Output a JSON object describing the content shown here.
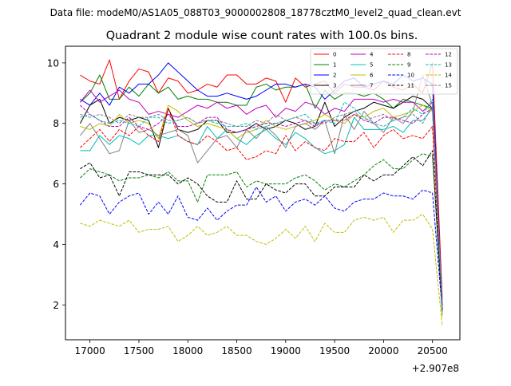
{
  "figure": {
    "suptitle": "Data file: modeM0/AS1A05_088T03_9000002808_18778cztM0_level2_quad_clean.evt",
    "title": "Quadrant 2 module wise count rates with 100.0s bins.",
    "offset_label": "+2.907e8"
  },
  "chart_data": {
    "type": "line",
    "title": "Quadrant 2 module wise count rates with 100.0s bins.",
    "xlabel": "",
    "ylabel": "",
    "x_offset": 290700000,
    "xlim": [
      16750,
      20780
    ],
    "ylim": [
      0.85,
      10.55
    ],
    "xticks": [
      17000,
      17500,
      18000,
      18500,
      19000,
      19500,
      20000,
      20500
    ],
    "yticks": [
      2,
      4,
      6,
      8,
      10
    ],
    "xtick_labels": [
      "17000",
      "17500",
      "18000",
      "18500",
      "19000",
      "19500",
      "20000",
      "20500"
    ],
    "ytick_labels": [
      "2",
      "4",
      "6",
      "8",
      "10"
    ],
    "grid": false,
    "legend_position": "top-right",
    "x": [
      16900,
      17000,
      17100,
      17200,
      17300,
      17400,
      17500,
      17600,
      17700,
      17800,
      17900,
      18000,
      18100,
      18200,
      18300,
      18400,
      18500,
      18600,
      18700,
      18800,
      18900,
      19000,
      19100,
      19200,
      19300,
      19400,
      19500,
      19600,
      19700,
      19800,
      19900,
      20000,
      20100,
      20200,
      20300,
      20400,
      20500,
      20600
    ],
    "series": [
      {
        "name": "0",
        "color": "#ff0000",
        "dash": "solid",
        "values": [
          9.6,
          9.4,
          9.3,
          10.1,
          8.8,
          9.4,
          9.8,
          9.7,
          9.0,
          9.5,
          9.4,
          9.0,
          9.1,
          9.3,
          9.2,
          9.6,
          9.6,
          9.3,
          9.3,
          9.5,
          9.4,
          8.7,
          9.5,
          9.2,
          9.3,
          9.4,
          9.0,
          9.3,
          9.2,
          9.2,
          9.1,
          9.4,
          9.2,
          9.1,
          9.3,
          9.0,
          10.0,
          2.2
        ]
      },
      {
        "name": "1",
        "color": "#008000",
        "dash": "solid",
        "values": [
          8.7,
          9.0,
          9.6,
          8.8,
          8.8,
          9.2,
          8.9,
          9.3,
          9.0,
          9.2,
          8.8,
          8.9,
          8.8,
          8.8,
          8.7,
          8.7,
          8.6,
          8.6,
          9.2,
          9.3,
          9.1,
          9.2,
          9.2,
          9.3,
          8.5,
          9.1,
          8.8,
          9.0,
          9.0,
          8.9,
          9.0,
          8.8,
          8.5,
          8.8,
          8.7,
          8.6,
          8.5,
          2.0
        ]
      },
      {
        "name": "2",
        "color": "#0000ff",
        "dash": "solid",
        "values": [
          8.8,
          8.6,
          9.0,
          8.6,
          9.2,
          9.0,
          9.3,
          9.3,
          9.6,
          10.0,
          9.7,
          9.4,
          9.1,
          8.9,
          8.9,
          9.0,
          8.9,
          8.8,
          8.9,
          9.1,
          9.3,
          9.3,
          9.2,
          9.3,
          9.2,
          8.8,
          9.1,
          9.4,
          9.5,
          9.2,
          9.3,
          9.4,
          9.3,
          9.6,
          9.4,
          9.5,
          9.3,
          1.9
        ]
      },
      {
        "name": "3",
        "color": "#000000",
        "dash": "solid",
        "values": [
          8.0,
          8.6,
          8.8,
          8.0,
          8.2,
          8.1,
          8.2,
          8.1,
          7.2,
          8.5,
          7.8,
          7.7,
          7.8,
          8.1,
          8.1,
          7.7,
          7.7,
          7.8,
          8.0,
          7.8,
          7.9,
          8.1,
          8.0,
          7.8,
          7.9,
          8.7,
          7.9,
          8.2,
          8.4,
          8.5,
          8.7,
          8.6,
          8.5,
          8.7,
          8.9,
          8.8,
          8.5,
          1.7
        ]
      },
      {
        "name": "4",
        "color": "#bf00bf",
        "dash": "solid",
        "values": [
          8.7,
          9.1,
          8.7,
          8.9,
          9.1,
          8.8,
          8.7,
          8.3,
          8.4,
          8.3,
          8.2,
          8.4,
          8.6,
          8.5,
          8.7,
          8.5,
          8.6,
          8.3,
          8.5,
          8.6,
          8.2,
          8.5,
          8.4,
          8.7,
          8.6,
          8.3,
          8.5,
          8.4,
          8.8,
          8.8,
          8.8,
          8.7,
          8.8,
          8.7,
          8.7,
          8.4,
          8.7,
          2.0
        ]
      },
      {
        "name": "5",
        "color": "#00bfbf",
        "dash": "solid",
        "values": [
          7.1,
          7.1,
          7.6,
          7.3,
          7.6,
          7.5,
          7.3,
          7.6,
          7.6,
          7.5,
          7.6,
          7.4,
          7.3,
          7.9,
          7.5,
          7.8,
          7.5,
          7.3,
          7.6,
          7.8,
          7.5,
          7.3,
          7.7,
          7.5,
          7.2,
          7.0,
          7.1,
          7.3,
          8.2,
          7.8,
          7.8,
          7.8,
          7.9,
          7.7,
          8.1,
          8.1,
          8.5,
          1.7
        ]
      },
      {
        "name": "6",
        "color": "#bfbf00",
        "dash": "solid",
        "values": [
          7.9,
          7.8,
          8.0,
          7.9,
          8.3,
          8.0,
          8.1,
          8.0,
          7.5,
          8.6,
          8.4,
          8.1,
          7.9,
          8.0,
          7.9,
          7.8,
          7.5,
          7.7,
          7.8,
          8.1,
          7.9,
          7.8,
          7.9,
          8.0,
          8.1,
          8.3,
          8.1,
          8.0,
          8.3,
          8.2,
          8.4,
          8.5,
          8.2,
          8.3,
          8.4,
          8.6,
          8.4,
          1.6
        ]
      },
      {
        "name": "7",
        "color": "#808080",
        "dash": "solid",
        "values": [
          7.6,
          8.0,
          7.5,
          7.0,
          7.1,
          8.1,
          7.7,
          7.8,
          7.6,
          7.7,
          7.8,
          7.6,
          6.7,
          7.1,
          7.5,
          7.6,
          7.2,
          7.8,
          7.5,
          7.9,
          7.6,
          7.2,
          7.9,
          8.0,
          7.8,
          8.1,
          7.0,
          8.3,
          7.8,
          8.4,
          8.0,
          7.7,
          8.2,
          8.0,
          8.4,
          9.6,
          8.6,
          1.8
        ]
      },
      {
        "name": "8",
        "color": "#ff0000",
        "dash": "dash",
        "values": [
          7.2,
          7.5,
          7.8,
          7.4,
          7.8,
          7.6,
          7.9,
          7.6,
          7.4,
          8.5,
          7.6,
          7.4,
          7.3,
          7.6,
          7.4,
          7.1,
          7.2,
          6.8,
          6.9,
          7.1,
          7.0,
          7.6,
          7.1,
          7.4,
          7.2,
          7.1,
          7.5,
          7.4,
          7.4,
          7.7,
          7.2,
          7.6,
          7.8,
          7.5,
          7.6,
          7.5,
          7.9,
          1.8
        ]
      },
      {
        "name": "9",
        "color": "#008000",
        "dash": "dash",
        "values": [
          6.2,
          6.5,
          6.4,
          6.3,
          6.1,
          6.2,
          6.2,
          6.3,
          6.2,
          6.4,
          6.1,
          6.1,
          5.4,
          6.3,
          6.3,
          6.3,
          6.4,
          5.9,
          6.1,
          6.0,
          6.0,
          6.0,
          6.2,
          6.3,
          6.1,
          5.8,
          6.0,
          5.9,
          6.1,
          6.3,
          6.6,
          6.8,
          6.5,
          6.5,
          6.8,
          7.0,
          6.9,
          1.8
        ]
      },
      {
        "name": "10",
        "color": "#0000ff",
        "dash": "dash",
        "values": [
          5.3,
          5.7,
          5.6,
          5.0,
          5.4,
          5.6,
          5.7,
          5.0,
          5.4,
          5.0,
          5.6,
          4.9,
          4.8,
          5.2,
          4.8,
          5.1,
          5.3,
          5.3,
          5.9,
          5.4,
          5.6,
          5.1,
          5.4,
          5.5,
          5.3,
          5.6,
          5.2,
          5.1,
          5.4,
          5.5,
          5.5,
          5.7,
          5.6,
          5.6,
          5.5,
          5.8,
          5.7,
          1.8
        ]
      },
      {
        "name": "11",
        "color": "#000000",
        "dash": "dash",
        "values": [
          6.5,
          6.7,
          6.2,
          6.3,
          5.6,
          6.4,
          6.4,
          6.3,
          6.3,
          6.3,
          6.0,
          6.2,
          6.0,
          5.6,
          5.4,
          5.4,
          6.1,
          5.5,
          5.5,
          6.0,
          5.8,
          5.7,
          6.0,
          6.0,
          5.6,
          5.6,
          5.9,
          5.9,
          5.9,
          6.3,
          6.1,
          6.3,
          6.3,
          6.6,
          6.9,
          6.6,
          7.1,
          1.8
        ]
      },
      {
        "name": "12",
        "color": "#bf00bf",
        "dash": "dash",
        "values": [
          8.6,
          8.3,
          8.1,
          7.9,
          7.9,
          8.2,
          7.9,
          7.8,
          8.0,
          8.3,
          7.9,
          7.9,
          8.0,
          8.2,
          8.2,
          7.8,
          7.7,
          7.8,
          7.9,
          8.0,
          8.0,
          7.9,
          8.0,
          8.1,
          7.9,
          8.1,
          8.1,
          8.1,
          8.3,
          8.1,
          8.0,
          8.2,
          8.2,
          8.1,
          8.0,
          8.3,
          8.5,
          1.9
        ]
      },
      {
        "name": "13",
        "color": "#00bfbf",
        "dash": "dash",
        "values": [
          8.2,
          8.3,
          8.1,
          8.0,
          8.1,
          8.0,
          7.9,
          8.2,
          8.2,
          8.0,
          8.1,
          8.2,
          8.0,
          8.1,
          8.0,
          7.9,
          7.9,
          8.0,
          7.8,
          7.9,
          8.0,
          8.1,
          8.2,
          8.3,
          8.0,
          8.1,
          8.0,
          8.7,
          8.5,
          8.2,
          8.0,
          7.9,
          8.1,
          8.2,
          8.5,
          8.3,
          8.8,
          1.8
        ]
      },
      {
        "name": "14",
        "color": "#bfbf00",
        "dash": "dash",
        "values": [
          4.7,
          4.6,
          4.8,
          4.7,
          4.6,
          4.8,
          4.4,
          4.5,
          4.5,
          4.6,
          4.1,
          4.3,
          4.6,
          4.3,
          4.4,
          4.6,
          4.3,
          4.3,
          4.1,
          4.0,
          4.2,
          4.5,
          4.2,
          4.6,
          4.1,
          4.7,
          4.4,
          4.4,
          4.8,
          4.9,
          4.8,
          4.9,
          4.4,
          4.8,
          4.8,
          5.0,
          4.5,
          1.3
        ]
      },
      {
        "name": "15",
        "color": "#808080",
        "dash": "dash",
        "values": [
          8.3,
          8.2,
          8.3,
          8.2,
          8.0,
          8.3,
          8.2,
          8.2,
          8.3,
          8.1,
          8.1,
          8.2,
          8.0,
          8.1,
          8.1,
          8.0,
          7.9,
          7.9,
          8.1,
          8.0,
          8.3,
          8.1,
          8.2,
          8.1,
          8.0,
          8.0,
          8.2,
          8.3,
          8.4,
          8.1,
          8.2,
          8.3,
          8.1,
          8.2,
          8.3,
          8.0,
          8.6,
          1.9
        ]
      }
    ]
  }
}
